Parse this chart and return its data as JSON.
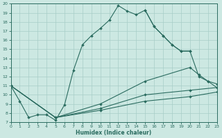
{
  "xlabel": "Humidex (Indice chaleur)",
  "bg_color": "#cce8e2",
  "line_color": "#2a6b5f",
  "grid_color": "#a8cdc7",
  "curve1_x": [
    0,
    1,
    2,
    3,
    4,
    5,
    6,
    7,
    8,
    9,
    10,
    11,
    12,
    13,
    14,
    15,
    16,
    17,
    18,
    19,
    20
  ],
  "curve1_y": [
    11.0,
    9.3,
    7.5,
    7.8,
    7.8,
    7.2,
    8.9,
    12.7,
    15.5,
    16.5,
    17.3,
    18.2,
    19.8,
    19.2,
    18.8,
    19.3,
    17.5,
    16.5,
    15.5,
    14.8,
    14.8
  ],
  "curve2_x": [
    15,
    16,
    17,
    18,
    19,
    20,
    21,
    22,
    23
  ],
  "curve2_y": [
    19.3,
    17.5,
    16.5,
    15.5,
    14.8,
    14.8,
    12.0,
    11.5,
    10.8
  ],
  "curve3_x": [
    0,
    5,
    10,
    15,
    20,
    21,
    22,
    23
  ],
  "curve3_y": [
    11.0,
    7.5,
    9.0,
    11.5,
    13.0,
    12.2,
    11.5,
    11.2
  ],
  "curve4_x": [
    0,
    5,
    10,
    15,
    20,
    23
  ],
  "curve4_y": [
    11.0,
    7.5,
    8.5,
    10.0,
    10.5,
    10.8
  ],
  "curve5_x": [
    0,
    5,
    10,
    15,
    20,
    23
  ],
  "curve5_y": [
    11.0,
    7.5,
    8.3,
    9.3,
    9.8,
    10.3
  ],
  "xlim": [
    0,
    23
  ],
  "ylim": [
    7,
    20
  ],
  "xticks": [
    0,
    1,
    2,
    3,
    4,
    5,
    6,
    7,
    8,
    9,
    10,
    11,
    12,
    13,
    14,
    15,
    16,
    17,
    18,
    19,
    20,
    21,
    22,
    23
  ],
  "yticks": [
    7,
    8,
    9,
    10,
    11,
    12,
    13,
    14,
    15,
    16,
    17,
    18,
    19,
    20
  ]
}
